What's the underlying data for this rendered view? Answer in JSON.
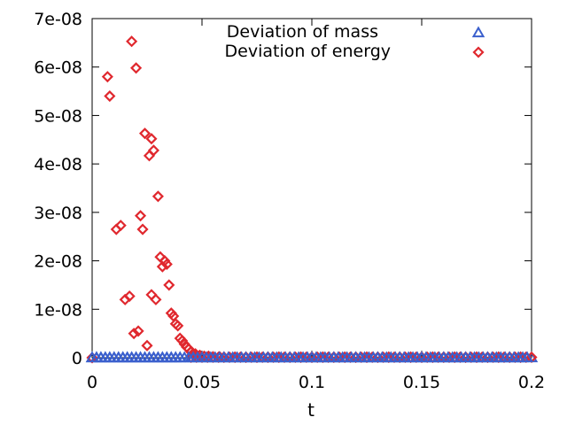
{
  "chart_data": {
    "type": "scatter",
    "title": "",
    "xlabel": "t",
    "ylabel": "",
    "xlim": [
      0,
      0.2
    ],
    "ylim": [
      0,
      7e-08
    ],
    "x_ticks": [
      "0",
      "0.05",
      "0.1",
      "0.15",
      "0.2"
    ],
    "x_tick_values": [
      0,
      0.05,
      0.1,
      0.15,
      0.2
    ],
    "y_ticks": [
      "0",
      "1e-08",
      "2e-08",
      "3e-08",
      "4e-08",
      "5e-08",
      "6e-08",
      "7e-08"
    ],
    "y_tick_values": [
      0,
      1e-08,
      2e-08,
      3e-08,
      4e-08,
      5e-08,
      6e-08,
      7e-08
    ],
    "legend_position": "top-right",
    "series": [
      {
        "name": "Deviation of mass",
        "marker": "triangle",
        "color": "#3a5fcd",
        "x": [
          0.0,
          0.002,
          0.004,
          0.006,
          0.008,
          0.01,
          0.012,
          0.014,
          0.016,
          0.018,
          0.02,
          0.022,
          0.024,
          0.026,
          0.028,
          0.03,
          0.032,
          0.034,
          0.036,
          0.038,
          0.04,
          0.045,
          0.05,
          0.055,
          0.06,
          0.065,
          0.07,
          0.075,
          0.08,
          0.085,
          0.09,
          0.095,
          0.1,
          0.105,
          0.11,
          0.115,
          0.12,
          0.125,
          0.13,
          0.135,
          0.14,
          0.145,
          0.15,
          0.155,
          0.16,
          0.165,
          0.17,
          0.175,
          0.18,
          0.185,
          0.19,
          0.195,
          0.2
        ],
        "y": [
          0,
          0,
          0,
          0,
          0,
          0,
          0,
          0,
          0,
          0,
          0,
          0,
          0,
          0,
          0,
          0,
          0,
          0,
          0,
          0,
          0,
          0,
          0,
          0,
          0,
          0,
          0,
          0,
          0,
          0,
          0,
          0,
          0,
          0,
          0,
          0,
          0,
          0,
          0,
          0,
          0,
          0,
          0,
          0,
          0,
          0,
          0,
          0,
          0,
          0,
          0,
          0,
          0
        ]
      },
      {
        "name": "Deviation of energy",
        "marker": "diamond",
        "color": "#e0282e",
        "x": [
          0.0,
          0.007,
          0.008,
          0.011,
          0.013,
          0.015,
          0.017,
          0.018,
          0.019,
          0.02,
          0.021,
          0.022,
          0.023,
          0.024,
          0.025,
          0.026,
          0.027,
          0.027,
          0.028,
          0.029,
          0.03,
          0.031,
          0.032,
          0.033,
          0.034,
          0.035,
          0.036,
          0.037,
          0.038,
          0.039,
          0.04,
          0.041,
          0.042,
          0.043,
          0.044,
          0.045,
          0.047,
          0.049,
          0.051,
          0.053,
          0.055,
          0.058,
          0.06,
          0.065,
          0.07,
          0.075,
          0.08,
          0.085,
          0.09,
          0.095,
          0.1,
          0.105,
          0.11,
          0.115,
          0.12,
          0.125,
          0.13,
          0.135,
          0.14,
          0.145,
          0.15,
          0.155,
          0.16,
          0.165,
          0.17,
          0.175,
          0.18,
          0.185,
          0.19,
          0.195,
          0.2
        ],
        "y": [
          0,
          5.8e-08,
          5.4e-08,
          2.65e-08,
          2.73e-08,
          1.2e-08,
          1.27e-08,
          6.53e-08,
          5e-09,
          5.98e-08,
          5.5e-09,
          2.93e-08,
          2.65e-08,
          4.63e-08,
          2.5e-09,
          4.17e-08,
          1.3e-08,
          4.52e-08,
          4.28e-08,
          1.2e-08,
          3.33e-08,
          2.08e-08,
          1.88e-08,
          2e-08,
          1.93e-08,
          1.5e-08,
          9.2e-09,
          8.6e-09,
          7e-09,
          6.6e-09,
          4e-09,
          3.5e-09,
          2.8e-09,
          2.2e-09,
          1.8e-09,
          1.2e-09,
          8e-10,
          5e-10,
          3e-10,
          3e-10,
          2e-10,
          2e-10,
          1e-10,
          1e-10,
          1e-10,
          1e-10,
          1e-10,
          1e-10,
          1e-10,
          1e-10,
          1e-10,
          1e-10,
          1e-10,
          1e-10,
          1e-10,
          1e-10,
          1e-10,
          1e-10,
          1e-10,
          1e-10,
          1e-10,
          1e-10,
          1e-10,
          1e-10,
          1e-10,
          1e-10,
          1e-10,
          1e-10,
          1e-10,
          1e-10,
          1e-10
        ]
      }
    ]
  }
}
